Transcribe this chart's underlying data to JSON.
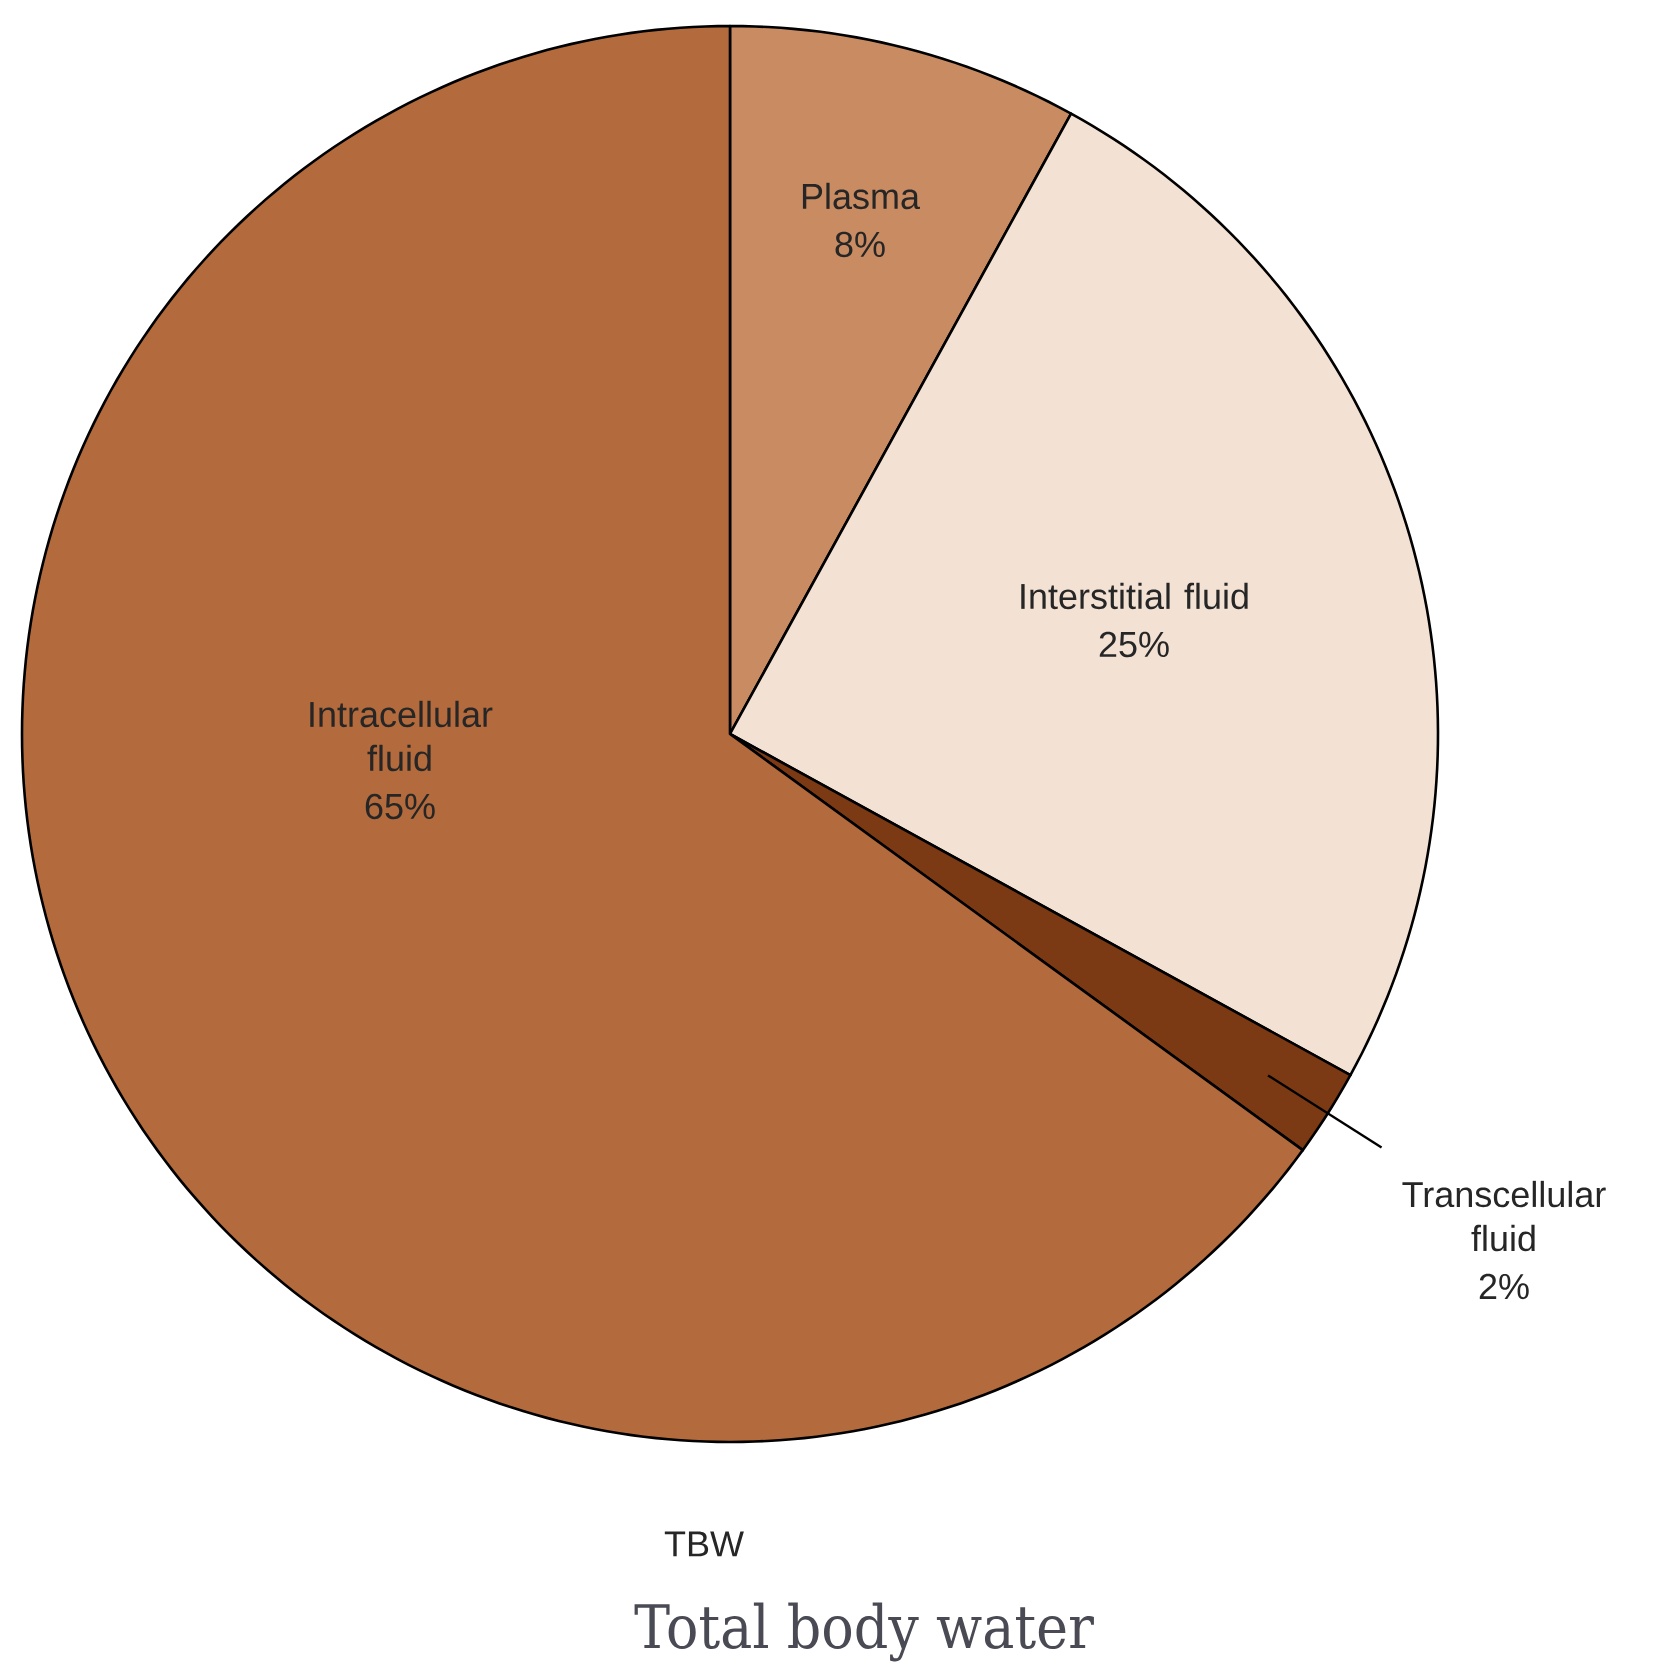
{
  "chart_data": {
    "type": "pie",
    "title": "Total body water",
    "categories": [
      "Plasma",
      "Interstitial fluid",
      "Transcellular fluid",
      "Intracellular fluid"
    ],
    "values": [
      8,
      25,
      2,
      65
    ],
    "value_labels": [
      "8%",
      "25%",
      "2%",
      "65%"
    ],
    "colors": [
      "#c98b62",
      "#f3e1d4",
      "#7b3a14",
      "#b36a3c"
    ],
    "annotations": [
      "TBW"
    ]
  }
}
